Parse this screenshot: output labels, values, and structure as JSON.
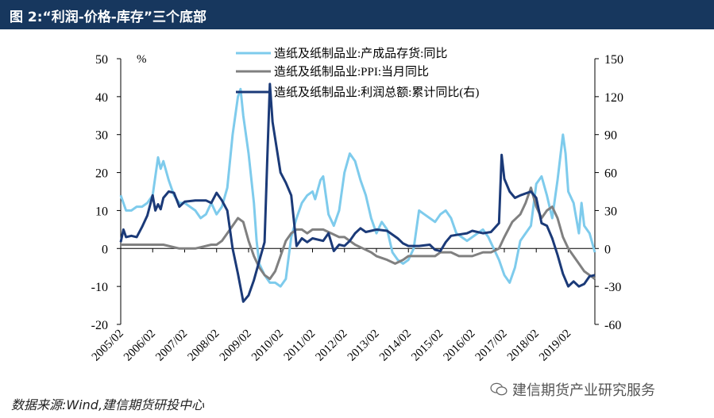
{
  "title": "图 2:“利润-价格-库存”三个底部",
  "source": "数据来源:Wind,建信期货研投中心",
  "watermark": "建信期货产业研究服务",
  "chart_data": {
    "type": "line",
    "ylabel_left": "%",
    "ylim_left": [
      -20,
      50
    ],
    "yticks_left": [
      -20,
      -10,
      0,
      10,
      20,
      30,
      40,
      50
    ],
    "ylim_right": [
      -60,
      150
    ],
    "yticks_right": [
      -60,
      -30,
      0,
      30,
      60,
      90,
      120,
      150
    ],
    "x_ticks": [
      "2005/02",
      "2006/02",
      "2007/02",
      "2008/02",
      "2009/02",
      "2010/02",
      "2011/02",
      "2012/02",
      "2013/02",
      "2014/02",
      "2015/02",
      "2016/02",
      "2017/02",
      "2018/02",
      "2019/02"
    ],
    "grid": false,
    "legend_position": "top",
    "series": [
      {
        "name": "造纸及纸制品业:产成品存货:同比",
        "color": "#7ecbec",
        "axis": "left",
        "points": [
          [
            "2005/02",
            14
          ],
          [
            "2005/04",
            10
          ],
          [
            "2005/06",
            10
          ],
          [
            "2005/08",
            11
          ],
          [
            "2005/10",
            11
          ],
          [
            "2005/12",
            12
          ],
          [
            "2006/02",
            14
          ],
          [
            "2006/04",
            24
          ],
          [
            "2006/05",
            21
          ],
          [
            "2006/06",
            23
          ],
          [
            "2006/08",
            18
          ],
          [
            "2006/10",
            14
          ],
          [
            "2006/12",
            12
          ],
          [
            "2007/02",
            12
          ],
          [
            "2007/04",
            11
          ],
          [
            "2007/06",
            10
          ],
          [
            "2007/08",
            8
          ],
          [
            "2007/10",
            9
          ],
          [
            "2007/12",
            12
          ],
          [
            "2008/02",
            9
          ],
          [
            "2008/04",
            11
          ],
          [
            "2008/06",
            16
          ],
          [
            "2008/08",
            30
          ],
          [
            "2008/10",
            40
          ],
          [
            "2008/11",
            42
          ],
          [
            "2008/12",
            35
          ],
          [
            "2009/02",
            25
          ],
          [
            "2009/04",
            12
          ],
          [
            "2009/05",
            2
          ],
          [
            "2009/06",
            -4
          ],
          [
            "2009/08",
            -7
          ],
          [
            "2009/10",
            -9
          ],
          [
            "2009/12",
            -9
          ],
          [
            "2010/02",
            -10
          ],
          [
            "2010/04",
            -8
          ],
          [
            "2010/06",
            3
          ],
          [
            "2010/08",
            8
          ],
          [
            "2010/10",
            12
          ],
          [
            "2010/12",
            14
          ],
          [
            "2011/02",
            15
          ],
          [
            "2011/03",
            13
          ],
          [
            "2011/05",
            18
          ],
          [
            "2011/06",
            19
          ],
          [
            "2011/08",
            9
          ],
          [
            "2011/10",
            6
          ],
          [
            "2011/12",
            10
          ],
          [
            "2012/02",
            20
          ],
          [
            "2012/04",
            25
          ],
          [
            "2012/06",
            23
          ],
          [
            "2012/08",
            18
          ],
          [
            "2012/10",
            14
          ],
          [
            "2012/12",
            8
          ],
          [
            "2013/02",
            4
          ],
          [
            "2013/04",
            7
          ],
          [
            "2013/06",
            5
          ],
          [
            "2013/08",
            -1
          ],
          [
            "2013/10",
            -3
          ],
          [
            "2013/12",
            -4
          ],
          [
            "2014/02",
            -3
          ],
          [
            "2014/04",
            0
          ],
          [
            "2014/06",
            10
          ],
          [
            "2014/08",
            9
          ],
          [
            "2014/10",
            8
          ],
          [
            "2014/12",
            7
          ],
          [
            "2015/02",
            9
          ],
          [
            "2015/04",
            10
          ],
          [
            "2015/06",
            8
          ],
          [
            "2015/08",
            4
          ],
          [
            "2015/10",
            3
          ],
          [
            "2015/12",
            2
          ],
          [
            "2016/02",
            3
          ],
          [
            "2016/04",
            4
          ],
          [
            "2016/06",
            5
          ],
          [
            "2016/08",
            3
          ],
          [
            "2016/10",
            0
          ],
          [
            "2016/12",
            -3
          ],
          [
            "2017/02",
            -7
          ],
          [
            "2017/04",
            -9
          ],
          [
            "2017/06",
            -5
          ],
          [
            "2017/08",
            2
          ],
          [
            "2017/10",
            4
          ],
          [
            "2017/12",
            6
          ],
          [
            "2018/02",
            17
          ],
          [
            "2018/04",
            19
          ],
          [
            "2018/06",
            14
          ],
          [
            "2018/08",
            8
          ],
          [
            "2018/10",
            18
          ],
          [
            "2018/12",
            30
          ],
          [
            "2019/01",
            25
          ],
          [
            "2019/02",
            15
          ],
          [
            "2019/04",
            12
          ],
          [
            "2019/06",
            4
          ],
          [
            "2019/07",
            12
          ],
          [
            "2019/08",
            6
          ],
          [
            "2019/10",
            4
          ],
          [
            "2019/12",
            -1
          ]
        ]
      },
      {
        "name": "造纸及纸制品业:PPI:当月同比",
        "color": "#808080",
        "axis": "left",
        "points": [
          [
            "2005/02",
            1
          ],
          [
            "2005/06",
            1
          ],
          [
            "2005/12",
            1
          ],
          [
            "2006/02",
            1
          ],
          [
            "2006/06",
            1
          ],
          [
            "2006/12",
            0
          ],
          [
            "2007/02",
            0
          ],
          [
            "2007/06",
            0
          ],
          [
            "2007/12",
            1
          ],
          [
            "2008/02",
            1
          ],
          [
            "2008/04",
            2
          ],
          [
            "2008/06",
            4
          ],
          [
            "2008/08",
            6
          ],
          [
            "2008/10",
            8
          ],
          [
            "2008/12",
            7
          ],
          [
            "2009/02",
            2
          ],
          [
            "2009/04",
            -2
          ],
          [
            "2009/06",
            -5
          ],
          [
            "2009/08",
            -7
          ],
          [
            "2009/10",
            -8
          ],
          [
            "2009/12",
            -6
          ],
          [
            "2010/02",
            -2
          ],
          [
            "2010/04",
            2
          ],
          [
            "2010/06",
            4
          ],
          [
            "2010/08",
            5
          ],
          [
            "2010/10",
            5
          ],
          [
            "2010/12",
            4
          ],
          [
            "2011/02",
            5
          ],
          [
            "2011/06",
            5
          ],
          [
            "2011/09",
            4
          ],
          [
            "2011/12",
            3
          ],
          [
            "2012/02",
            3
          ],
          [
            "2012/06",
            1
          ],
          [
            "2012/09",
            0
          ],
          [
            "2012/12",
            -1
          ],
          [
            "2013/02",
            -2
          ],
          [
            "2013/06",
            -3
          ],
          [
            "2013/09",
            -4
          ],
          [
            "2013/12",
            -3
          ],
          [
            "2014/02",
            -2
          ],
          [
            "2014/06",
            -2
          ],
          [
            "2014/09",
            -2
          ],
          [
            "2014/12",
            -2
          ],
          [
            "2015/02",
            -1
          ],
          [
            "2015/06",
            -1
          ],
          [
            "2015/09",
            -2
          ],
          [
            "2015/12",
            -2
          ],
          [
            "2016/02",
            -2
          ],
          [
            "2016/06",
            -1
          ],
          [
            "2016/09",
            -1
          ],
          [
            "2016/12",
            0
          ],
          [
            "2017/02",
            3
          ],
          [
            "2017/05",
            7
          ],
          [
            "2017/08",
            9
          ],
          [
            "2017/10",
            12
          ],
          [
            "2017/12",
            16
          ],
          [
            "2018/02",
            11
          ],
          [
            "2018/04",
            8
          ],
          [
            "2018/06",
            10
          ],
          [
            "2018/08",
            11
          ],
          [
            "2018/10",
            8
          ],
          [
            "2018/12",
            3
          ],
          [
            "2019/02",
            0
          ],
          [
            "2019/04",
            -2
          ],
          [
            "2019/06",
            -4
          ],
          [
            "2019/08",
            -6
          ],
          [
            "2019/10",
            -7
          ],
          [
            "2019/12",
            -8
          ]
        ]
      },
      {
        "name": "造纸及纸制品业:利润总额:累计同比(右)",
        "color": "#1b3a78",
        "axis": "right",
        "points": [
          [
            "2005/02",
            5
          ],
          [
            "2005/03",
            15
          ],
          [
            "2005/04",
            9
          ],
          [
            "2005/06",
            10
          ],
          [
            "2005/08",
            9
          ],
          [
            "2005/10",
            17
          ],
          [
            "2005/12",
            26
          ],
          [
            "2006/02",
            42
          ],
          [
            "2006/03",
            30
          ],
          [
            "2006/04",
            35
          ],
          [
            "2006/05",
            31
          ],
          [
            "2006/06",
            40
          ],
          [
            "2006/08",
            45
          ],
          [
            "2006/10",
            44
          ],
          [
            "2006/12",
            33
          ],
          [
            "2007/02",
            37
          ],
          [
            "2007/06",
            38
          ],
          [
            "2007/10",
            38
          ],
          [
            "2007/12",
            36
          ],
          [
            "2008/02",
            44
          ],
          [
            "2008/04",
            38
          ],
          [
            "2008/06",
            30
          ],
          [
            "2008/08",
            0
          ],
          [
            "2008/10",
            -20
          ],
          [
            "2008/12",
            -42
          ],
          [
            "2009/02",
            -37
          ],
          [
            "2009/04",
            -25
          ],
          [
            "2009/06",
            -10
          ],
          [
            "2009/08",
            5
          ],
          [
            "2009/09",
            70
          ],
          [
            "2009/10",
            130
          ],
          [
            "2009/11",
            100
          ],
          [
            "2010/02",
            60
          ],
          [
            "2010/04",
            52
          ],
          [
            "2010/06",
            42
          ],
          [
            "2010/08",
            2
          ],
          [
            "2010/10",
            8
          ],
          [
            "2010/12",
            5
          ],
          [
            "2011/02",
            8
          ],
          [
            "2011/06",
            6
          ],
          [
            "2011/08",
            12
          ],
          [
            "2011/10",
            -2
          ],
          [
            "2011/12",
            3
          ],
          [
            "2012/02",
            2
          ],
          [
            "2012/04",
            6
          ],
          [
            "2012/06",
            12
          ],
          [
            "2012/08",
            16
          ],
          [
            "2012/10",
            13
          ],
          [
            "2012/12",
            14
          ],
          [
            "2013/02",
            15
          ],
          [
            "2013/06",
            14
          ],
          [
            "2013/10",
            8
          ],
          [
            "2013/12",
            4
          ],
          [
            "2014/02",
            2
          ],
          [
            "2014/06",
            2
          ],
          [
            "2014/10",
            3
          ],
          [
            "2014/12",
            -1
          ],
          [
            "2015/02",
            -2
          ],
          [
            "2015/04",
            5
          ],
          [
            "2015/06",
            10
          ],
          [
            "2015/09",
            11
          ],
          [
            "2015/12",
            12
          ],
          [
            "2016/02",
            14
          ],
          [
            "2016/06",
            12
          ],
          [
            "2016/09",
            13
          ],
          [
            "2016/12",
            20
          ],
          [
            "2017/01",
            74
          ],
          [
            "2017/02",
            55
          ],
          [
            "2017/04",
            45
          ],
          [
            "2017/06",
            40
          ],
          [
            "2017/08",
            42
          ],
          [
            "2017/12",
            45
          ],
          [
            "2018/02",
            40
          ],
          [
            "2018/04",
            20
          ],
          [
            "2018/06",
            18
          ],
          [
            "2018/08",
            8
          ],
          [
            "2018/10",
            -5
          ],
          [
            "2018/12",
            -20
          ],
          [
            "2019/02",
            -30
          ],
          [
            "2019/04",
            -26
          ],
          [
            "2019/06",
            -30
          ],
          [
            "2019/08",
            -28
          ],
          [
            "2019/10",
            -22
          ],
          [
            "2019/12",
            -21
          ]
        ]
      }
    ]
  }
}
